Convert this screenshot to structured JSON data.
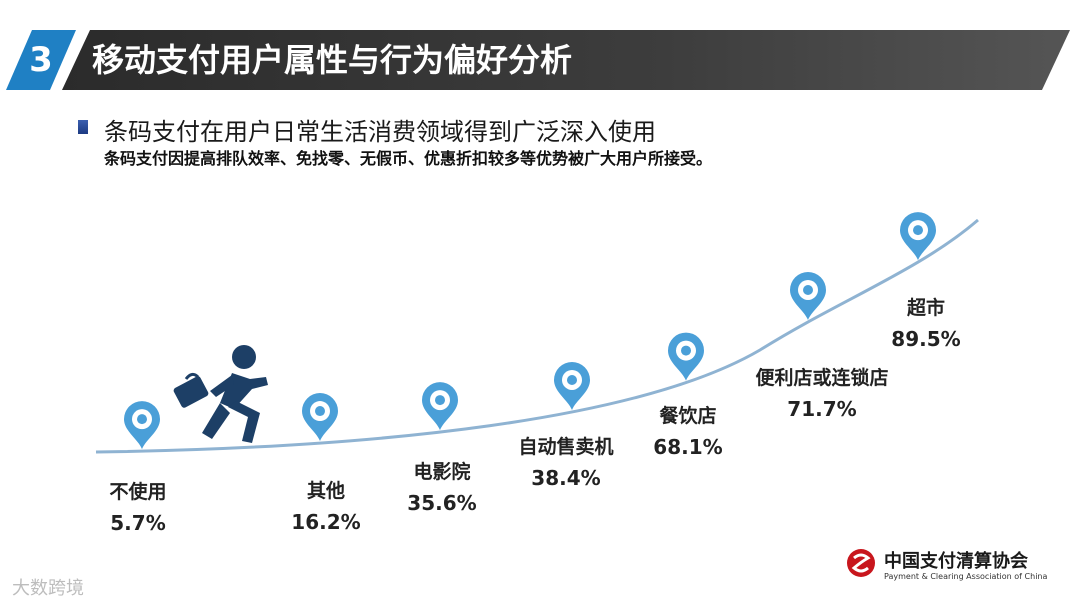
{
  "header": {
    "section_number": "3",
    "title": "移动支付用户属性与行为偏好分析"
  },
  "subtitle": "条码支付在用户日常生活消费领域得到广泛深入使用",
  "subtitle_note": "条码支付因提高排队效率、免找零、无假币、优惠折扣较多等优势被广大用户所接受。",
  "chart_data": {
    "type": "line",
    "categories": [
      "不使用",
      "其他",
      "电影院",
      "自动售卖机",
      "餐饮店",
      "便利店或连锁店",
      "超市"
    ],
    "values": [
      5.7,
      16.2,
      35.6,
      38.4,
      68.1,
      71.7,
      89.5
    ],
    "value_labels": [
      "5.7%",
      "16.2%",
      "35.6%",
      "38.4%",
      "68.1%",
      "71.7%",
      "89.5%"
    ],
    "title": "",
    "xlabel": "",
    "ylabel": "",
    "line_color": "#8fb3d2",
    "marker_color": "#4a9fd8",
    "grid": false,
    "legend": "none"
  },
  "footer": {
    "org_name_cn": "中国支付清算协会",
    "org_name_en": "Payment & Clearing Association of China",
    "watermark": "大数跨境"
  }
}
